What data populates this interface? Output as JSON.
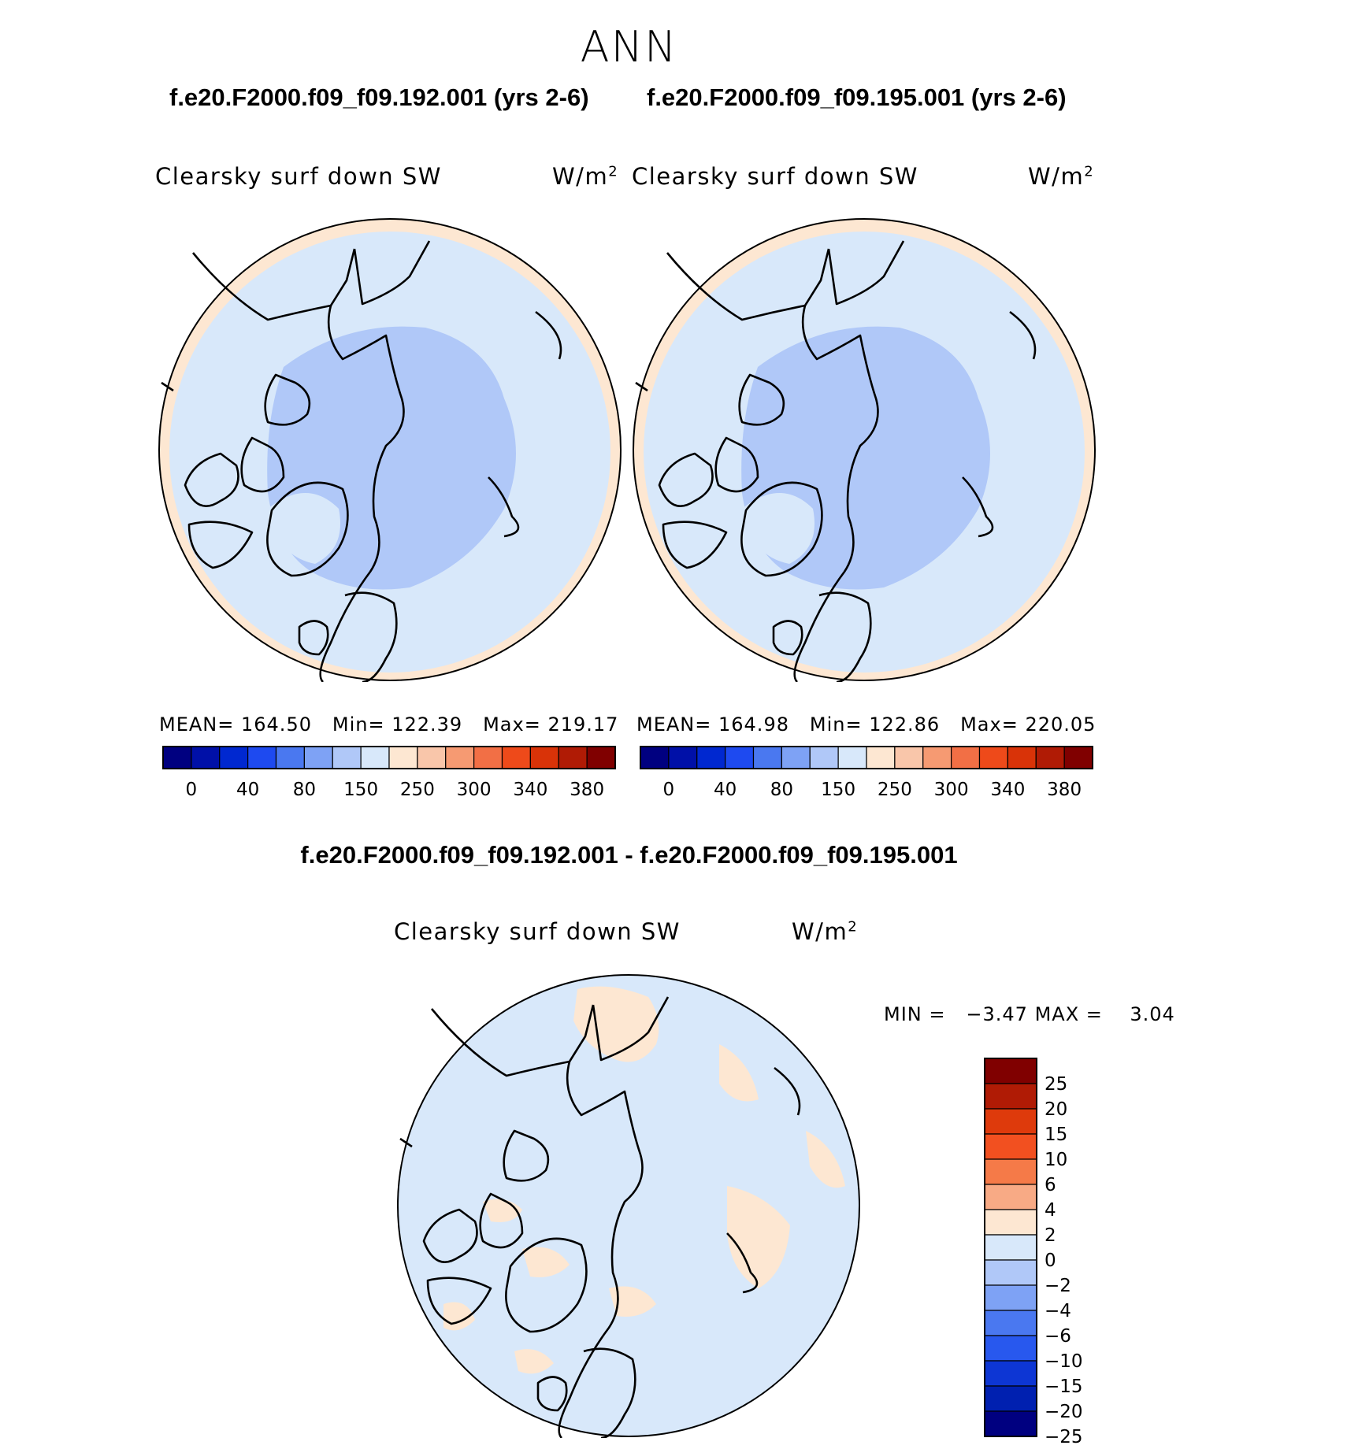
{
  "title": "ANN",
  "panels": [
    {
      "case_title": "f.e20.F2000.f09_f09.192.001 (yrs 2-6)",
      "variable": "Clearsky surf down SW",
      "units_base": "W/m",
      "units_sup": "2",
      "mean_label": "MEAN=",
      "mean": "164.50",
      "min_label": "Min=",
      "min": "122.39",
      "max_label": "Max=",
      "max": "219.17"
    },
    {
      "case_title": "f.e20.F2000.f09_f09.195.001 (yrs 2-6)",
      "variable": "Clearsky surf down SW",
      "units_base": "W/m",
      "units_sup": "2",
      "mean_label": "MEAN=",
      "mean": "164.98",
      "min_label": "Min=",
      "min": "122.86",
      "max_label": "Max=",
      "max": "220.05"
    }
  ],
  "abs_colorbar": {
    "colors": [
      "#000080",
      "#0010A8",
      "#0028D0",
      "#1E4AF0",
      "#4A78F0",
      "#7EA2F5",
      "#B0C8F8",
      "#D8E8FA",
      "#FDE7D2",
      "#F9C6AA",
      "#F69A72",
      "#F26F45",
      "#EE4A1A",
      "#D93308",
      "#B01B05",
      "#800000"
    ],
    "tick_labels": [
      "0",
      "40",
      "80",
      "150",
      "250",
      "300",
      "340",
      "380"
    ]
  },
  "difference": {
    "title": "f.e20.F2000.f09_f09.192.001 - f.e20.F2000.f09_f09.195.001",
    "variable": "Clearsky surf down SW",
    "units_base": "W/m",
    "units_sup": "2",
    "min_label": "MIN =",
    "min": "−3.47",
    "max_label": "MAX =",
    "max": "3.04"
  },
  "diff_colorbar": {
    "colors_top_to_bottom": [
      "#800000",
      "#B01B05",
      "#DE3A0C",
      "#F25020",
      "#F57A48",
      "#F8AA85",
      "#FDE7D2",
      "#D8E8FA",
      "#B0C8F8",
      "#7EA2F5",
      "#4A78F0",
      "#2858EE",
      "#0D36D4",
      "#0020B0",
      "#000080"
    ],
    "tick_labels": [
      "25",
      "20",
      "15",
      "10",
      "6",
      "4",
      "2",
      "0",
      "−2",
      "−4",
      "−6",
      "−10",
      "−15",
      "−20",
      "−25"
    ]
  },
  "fill_colors": {
    "ocean_pale_blue": "#D8E8FA",
    "arctic_blue": "#B0C8F8",
    "warm_band": "#FDE7D2"
  }
}
